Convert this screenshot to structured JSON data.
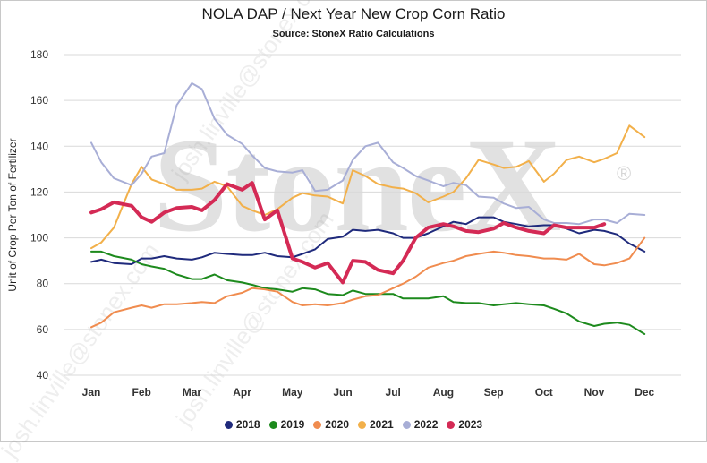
{
  "chart_data": {
    "type": "line",
    "title": "NOLA DAP / Next Year New Crop Corn Ratio",
    "subtitle": "Source: StoneX Ratio Calculations",
    "ylabel": "Unit of Crop Per Ton of Fertilizer",
    "xlabel": "",
    "ylim": [
      40,
      180
    ],
    "yticks": [
      40,
      60,
      80,
      100,
      120,
      140,
      160,
      180
    ],
    "categories": [
      "Jan",
      "Feb",
      "Mar",
      "Apr",
      "May",
      "Jun",
      "Jul",
      "Aug",
      "Sep",
      "Oct",
      "Nov",
      "Dec"
    ],
    "grid": "horizontal",
    "legend_position": "bottom",
    "series": [
      {
        "name": "2018",
        "color": "#1f2a7c",
        "width": 2,
        "x": [
          0.0,
          0.2,
          0.45,
          0.8,
          1.0,
          1.2,
          1.45,
          1.7,
          2.0,
          2.2,
          2.45,
          2.7,
          3.0,
          3.2,
          3.45,
          3.7,
          4.0,
          4.2,
          4.45,
          4.7,
          5.0,
          5.2,
          5.45,
          5.7,
          6.0,
          6.2,
          6.45,
          6.7,
          7.0,
          7.2,
          7.45,
          7.7,
          8.0,
          8.2,
          8.45,
          8.7,
          9.0,
          9.2,
          9.45,
          9.7,
          10.0,
          10.2,
          10.45,
          10.7,
          11.0
        ],
        "values": [
          89.5,
          90.5,
          89,
          88.5,
          91,
          91,
          92,
          91,
          90.5,
          91.5,
          93.5,
          93,
          92.5,
          92.5,
          93.5,
          92,
          91.5,
          93,
          95,
          99.5,
          100.5,
          103.5,
          103,
          103.5,
          102,
          100,
          100,
          102,
          105,
          107,
          106,
          109,
          109,
          107,
          106,
          105,
          105.5,
          105.5,
          104,
          102,
          103.5,
          103,
          101.5,
          97.5,
          94
        ]
      },
      {
        "name": "2019",
        "color": "#1d8a1d",
        "width": 2,
        "x": [
          0.0,
          0.2,
          0.45,
          0.8,
          1.0,
          1.2,
          1.45,
          1.7,
          2.0,
          2.2,
          2.45,
          2.7,
          3.0,
          3.2,
          3.45,
          3.7,
          4.0,
          4.2,
          4.45,
          4.7,
          5.0,
          5.2,
          5.45,
          5.7,
          6.0,
          6.2,
          6.45,
          6.7,
          7.0,
          7.2,
          7.45,
          7.7,
          8.0,
          8.2,
          8.45,
          8.7,
          9.0,
          9.2,
          9.45,
          9.7,
          10.0,
          10.2,
          10.45,
          10.7,
          11.0
        ],
        "values": [
          94,
          94,
          92,
          90.5,
          88.5,
          87.5,
          86.5,
          84,
          82,
          82,
          84,
          81.5,
          80.5,
          79.5,
          78,
          77.5,
          76.5,
          78,
          77.5,
          75.5,
          75,
          77,
          75.5,
          75.5,
          75.5,
          73.5,
          73.5,
          73.5,
          74.5,
          72,
          71.5,
          71.5,
          70.5,
          71,
          71.5,
          71,
          70.5,
          69,
          67,
          63.5,
          61.5,
          62.5,
          63,
          62,
          58
        ]
      },
      {
        "name": "2020",
        "color": "#f08c4f",
        "width": 2,
        "x": [
          0.0,
          0.2,
          0.45,
          0.8,
          1.0,
          1.2,
          1.45,
          1.7,
          2.0,
          2.2,
          2.45,
          2.7,
          3.0,
          3.2,
          3.45,
          3.7,
          4.0,
          4.2,
          4.45,
          4.7,
          5.0,
          5.2,
          5.45,
          5.7,
          6.0,
          6.2,
          6.45,
          6.7,
          7.0,
          7.2,
          7.45,
          7.7,
          8.0,
          8.2,
          8.45,
          8.7,
          9.0,
          9.2,
          9.45,
          9.7,
          10.0,
          10.2,
          10.45,
          10.7,
          11.0
        ],
        "values": [
          61,
          63,
          67.5,
          69.5,
          70.5,
          69.5,
          71,
          71,
          71.5,
          72,
          71.5,
          74.5,
          76,
          78,
          77.5,
          76.5,
          72,
          70.5,
          71,
          70.5,
          71.5,
          73,
          74.5,
          75,
          78,
          80,
          83,
          87,
          89,
          90,
          92,
          93,
          94,
          93.5,
          92.5,
          92,
          91,
          91,
          90.5,
          93,
          88.5,
          88,
          89,
          91,
          100
        ]
      },
      {
        "name": "2021",
        "color": "#f2b04a",
        "width": 2,
        "x": [
          0.0,
          0.2,
          0.45,
          0.8,
          1.0,
          1.2,
          1.45,
          1.7,
          2.0,
          2.2,
          2.45,
          2.7,
          3.0,
          3.2,
          3.45,
          3.7,
          4.0,
          4.2,
          4.45,
          4.7,
          5.0,
          5.2,
          5.45,
          5.7,
          6.0,
          6.2,
          6.45,
          6.7,
          7.0,
          7.2,
          7.45,
          7.7,
          8.0,
          8.2,
          8.45,
          8.7,
          9.0,
          9.2,
          9.45,
          9.7,
          10.0,
          10.2,
          10.45,
          10.7,
          11.0
        ],
        "values": [
          95.5,
          98,
          104.5,
          123.5,
          131,
          125.5,
          123.5,
          121,
          121,
          121.5,
          124.5,
          122.5,
          114,
          112,
          110,
          112.5,
          117.5,
          119.5,
          118.5,
          118,
          115,
          129.5,
          127,
          123.5,
          122,
          121.5,
          119.5,
          115.5,
          118,
          120,
          126,
          134,
          132,
          130.5,
          131,
          133.5,
          124.5,
          128,
          134,
          135.5,
          133,
          134.5,
          137,
          149,
          144
        ]
      },
      {
        "name": "2022",
        "color": "#a8aed6",
        "width": 2,
        "x": [
          0.0,
          0.2,
          0.45,
          0.8,
          1.0,
          1.2,
          1.45,
          1.7,
          2.0,
          2.2,
          2.45,
          2.7,
          3.0,
          3.2,
          3.45,
          3.7,
          4.0,
          4.2,
          4.45,
          4.7,
          5.0,
          5.2,
          5.45,
          5.7,
          6.0,
          6.2,
          6.45,
          6.7,
          7.0,
          7.2,
          7.45,
          7.7,
          8.0,
          8.2,
          8.45,
          8.7,
          9.0,
          9.2,
          9.45,
          9.7,
          10.0,
          10.2,
          10.45,
          10.7,
          11.0
        ],
        "values": [
          141.5,
          133,
          126,
          123,
          128,
          135.5,
          137,
          158,
          167.5,
          165,
          152,
          145,
          141,
          136,
          130.5,
          129,
          128.5,
          129.5,
          120.5,
          121,
          125,
          134,
          140,
          141.5,
          133,
          130.5,
          127,
          125,
          122.5,
          124,
          123,
          118,
          117.5,
          115,
          113,
          113.5,
          108,
          106.5,
          106.5,
          106,
          108,
          108,
          106.5,
          110.5,
          110
        ]
      },
      {
        "name": "2023",
        "color": "#d42a55",
        "width": 4,
        "x": [
          0.0,
          0.2,
          0.45,
          0.8,
          1.0,
          1.2,
          1.45,
          1.7,
          2.0,
          2.2,
          2.45,
          2.7,
          3.0,
          3.2,
          3.45,
          3.7,
          4.0,
          4.2,
          4.45,
          4.7,
          5.0,
          5.2,
          5.45,
          5.7,
          6.0,
          6.2,
          6.45,
          6.7,
          7.0,
          7.2,
          7.45,
          7.7,
          8.0,
          8.2,
          8.45,
          8.7,
          9.0,
          9.2,
          9.45,
          9.7,
          10.0,
          10.2
        ],
        "values": [
          111,
          112.5,
          115.5,
          114,
          109,
          107,
          111,
          113,
          113.5,
          112,
          116.5,
          123.5,
          121,
          124,
          108,
          112,
          91,
          89.5,
          87,
          89,
          80.5,
          90,
          89.5,
          86,
          84.5,
          90,
          100,
          104.5,
          106,
          105,
          103,
          102.5,
          104,
          106.5,
          104.5,
          103,
          102,
          105.5,
          104.5,
          104.5,
          104.5,
          106
        ]
      }
    ]
  },
  "watermark": {
    "brand": "StoneX",
    "registered": "®",
    "diagonal": "josh.linville@stonex.com"
  }
}
